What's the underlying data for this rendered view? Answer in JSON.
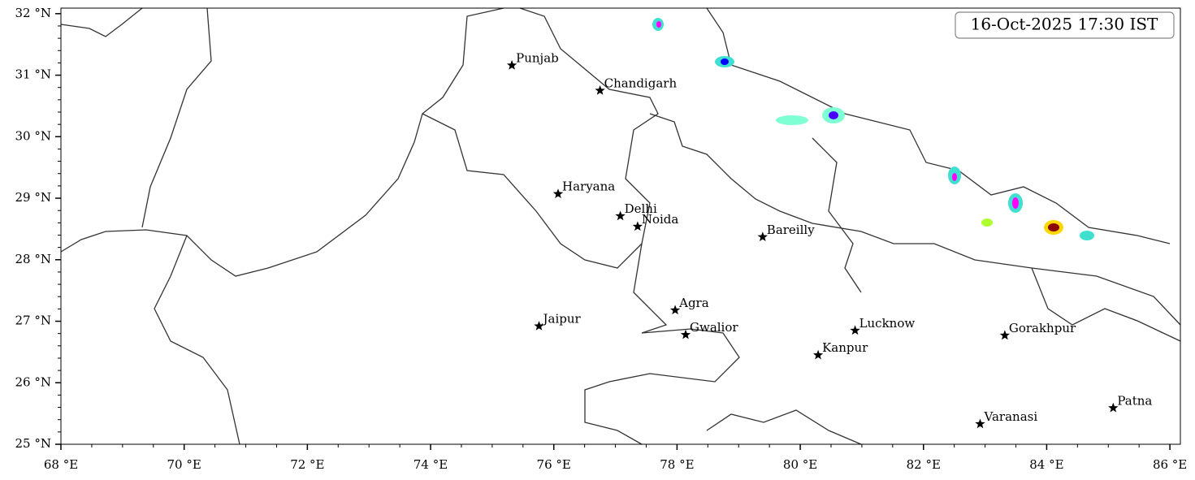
{
  "map": {
    "timestamp": "16-Oct-2025 17:30 IST",
    "xlim": [
      68,
      86.17
    ],
    "ylim": [
      25,
      32.09
    ],
    "xticks": [
      {
        "value": 68,
        "label": "68 °E"
      },
      {
        "value": 70,
        "label": "70 °E"
      },
      {
        "value": 72,
        "label": "72 °E"
      },
      {
        "value": 74,
        "label": "74 °E"
      },
      {
        "value": 76,
        "label": "76 °E"
      },
      {
        "value": 78,
        "label": "78 °E"
      },
      {
        "value": 80,
        "label": "80 °E"
      },
      {
        "value": 82,
        "label": "82 °E"
      },
      {
        "value": 84,
        "label": "84 °E"
      },
      {
        "value": 86,
        "label": "86 °E"
      }
    ],
    "yticks": [
      {
        "value": 25,
        "label": "25 °N"
      },
      {
        "value": 26,
        "label": "26 °N"
      },
      {
        "value": 27,
        "label": "27 °N"
      },
      {
        "value": 28,
        "label": "28 °N"
      },
      {
        "value": 29,
        "label": "29 °N"
      },
      {
        "value": 30,
        "label": "30 °N"
      },
      {
        "value": 31,
        "label": "31 °N"
      },
      {
        "value": 32,
        "label": "32 °N"
      }
    ],
    "cities": [
      {
        "name": "Punjab",
        "lon": 75.32,
        "lat": 31.16
      },
      {
        "name": "Chandigarh",
        "lon": 76.75,
        "lat": 30.75
      },
      {
        "name": "Haryana",
        "lon": 76.07,
        "lat": 29.07
      },
      {
        "name": "Delhi",
        "lon": 77.08,
        "lat": 28.71
      },
      {
        "name": "Noida",
        "lon": 77.36,
        "lat": 28.54
      },
      {
        "name": "Bareilly",
        "lon": 79.39,
        "lat": 28.37
      },
      {
        "name": "Agra",
        "lon": 77.97,
        "lat": 27.18
      },
      {
        "name": "Jaipur",
        "lon": 75.76,
        "lat": 26.92
      },
      {
        "name": "Gwalior",
        "lon": 78.14,
        "lat": 26.78
      },
      {
        "name": "Lucknow",
        "lon": 80.89,
        "lat": 26.85
      },
      {
        "name": "Kanpur",
        "lon": 80.29,
        "lat": 26.45
      },
      {
        "name": "Gorakhpur",
        "lon": 83.32,
        "lat": 26.77
      },
      {
        "name": "Varanasi",
        "lon": 82.92,
        "lat": 25.33
      },
      {
        "name": "Patna",
        "lon": 85.08,
        "lat": 25.59
      }
    ]
  }
}
